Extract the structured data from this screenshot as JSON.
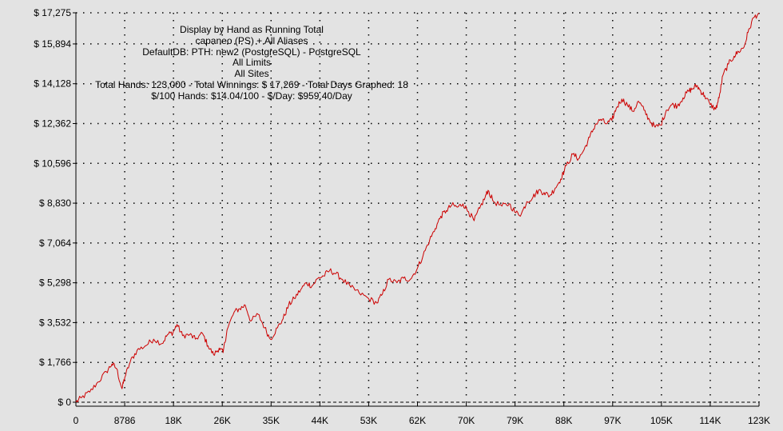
{
  "colors": {
    "background": "#e3e3e3",
    "line": "#cc0000",
    "grid": "#000000",
    "axis": "#000000"
  },
  "header": {
    "line1": "Display by Hand as Running Total",
    "line2": "capaneo (PS) + All Aliases",
    "line3": "DefaultDB: PTH: new2 (PostgreSQL) - PostgreSQL",
    "line4": "All Limits",
    "line5": "All Sites",
    "line6": "Total Hands: 123,000 - Total Winnings: $ 17,269 - Total Days Graphed: 18",
    "line7": "$/100 Hands: $14.04/100 - $/Day: $959.40/Day"
  },
  "chart_data": {
    "type": "line",
    "title": "",
    "xlabel": "",
    "ylabel": "",
    "grid": true,
    "xlim": [
      0,
      123000
    ],
    "ylim": [
      0,
      17275
    ],
    "y_tick_labels": [
      "$ 0",
      "$ 1,766",
      "$ 3,532",
      "$ 5,298",
      "$ 7,064",
      "$ 8,830",
      "$ 10,596",
      "$ 12,362",
      "$ 14,128",
      "$ 15,894",
      "$ 17,275"
    ],
    "y_tick_values": [
      0,
      1766,
      3532,
      5298,
      7064,
      8830,
      10596,
      12362,
      14128,
      15894,
      17275
    ],
    "x_tick_labels": [
      "0",
      "8786",
      "18K",
      "26K",
      "35K",
      "44K",
      "53K",
      "62K",
      "70K",
      "79K",
      "88K",
      "97K",
      "105K",
      "114K",
      "123K"
    ],
    "x_tick_values": [
      0,
      8786,
      17571,
      26357,
      35143,
      43929,
      52714,
      61500,
      70286,
      79071,
      87857,
      96643,
      105429,
      114214,
      123000
    ],
    "series": [
      {
        "values": [
          [
            0,
            0
          ],
          [
            1000,
            200
          ],
          [
            2500,
            450
          ],
          [
            4000,
            900
          ],
          [
            5500,
            1350
          ],
          [
            6500,
            1700
          ],
          [
            7300,
            1500
          ],
          [
            8300,
            600
          ],
          [
            8800,
            1100
          ],
          [
            9800,
            1800
          ],
          [
            11000,
            2300
          ],
          [
            12500,
            2500
          ],
          [
            14000,
            2800
          ],
          [
            15500,
            2600
          ],
          [
            16500,
            3000
          ],
          [
            17500,
            3100
          ],
          [
            18200,
            3450
          ],
          [
            19200,
            2950
          ],
          [
            20500,
            3000
          ],
          [
            21500,
            2800
          ],
          [
            22800,
            3050
          ],
          [
            23800,
            2500
          ],
          [
            24800,
            2100
          ],
          [
            25800,
            2400
          ],
          [
            26500,
            2200
          ],
          [
            27200,
            3200
          ],
          [
            28500,
            4000
          ],
          [
            29500,
            4150
          ],
          [
            30500,
            4300
          ],
          [
            31500,
            3600
          ],
          [
            32800,
            3900
          ],
          [
            34000,
            3300
          ],
          [
            35000,
            2800
          ],
          [
            36300,
            3300
          ],
          [
            37300,
            3700
          ],
          [
            38300,
            4300
          ],
          [
            39300,
            4600
          ],
          [
            40500,
            5000
          ],
          [
            41500,
            5300
          ],
          [
            42500,
            5150
          ],
          [
            43600,
            5500
          ],
          [
            44600,
            5600
          ],
          [
            45700,
            5850
          ],
          [
            46800,
            5700
          ],
          [
            48000,
            5450
          ],
          [
            49500,
            5100
          ],
          [
            51000,
            4850
          ],
          [
            52700,
            4600
          ],
          [
            54200,
            4400
          ],
          [
            55200,
            4800
          ],
          [
            56300,
            5450
          ],
          [
            57800,
            5300
          ],
          [
            59000,
            5500
          ],
          [
            60200,
            5450
          ],
          [
            61500,
            5950
          ],
          [
            62500,
            6500
          ],
          [
            63700,
            7200
          ],
          [
            64700,
            7700
          ],
          [
            65700,
            8250
          ],
          [
            66700,
            8500
          ],
          [
            67700,
            8750
          ],
          [
            68700,
            8650
          ],
          [
            69700,
            8800
          ],
          [
            70700,
            8450
          ],
          [
            71700,
            8050
          ],
          [
            72700,
            8600
          ],
          [
            73700,
            9100
          ],
          [
            74200,
            9400
          ],
          [
            75200,
            8900
          ],
          [
            76700,
            8700
          ],
          [
            78000,
            8800
          ],
          [
            79200,
            8400
          ],
          [
            80200,
            8350
          ],
          [
            81200,
            8900
          ],
          [
            82300,
            9100
          ],
          [
            83300,
            9400
          ],
          [
            84300,
            9300
          ],
          [
            85300,
            9150
          ],
          [
            86300,
            9500
          ],
          [
            87300,
            9900
          ],
          [
            88300,
            10500
          ],
          [
            89500,
            11000
          ],
          [
            90500,
            10800
          ],
          [
            91500,
            11200
          ],
          [
            92500,
            11750
          ],
          [
            93500,
            12300
          ],
          [
            94500,
            12550
          ],
          [
            95500,
            12350
          ],
          [
            96500,
            12500
          ],
          [
            97300,
            13050
          ],
          [
            98300,
            13450
          ],
          [
            99300,
            13200
          ],
          [
            100300,
            12900
          ],
          [
            101300,
            13350
          ],
          [
            102300,
            12950
          ],
          [
            103300,
            12500
          ],
          [
            104300,
            12200
          ],
          [
            105300,
            12300
          ],
          [
            106300,
            12950
          ],
          [
            107300,
            13200
          ],
          [
            108300,
            13150
          ],
          [
            109300,
            13500
          ],
          [
            110300,
            13800
          ],
          [
            111000,
            13900
          ],
          [
            111800,
            14050
          ],
          [
            112500,
            13800
          ],
          [
            113200,
            13600
          ],
          [
            114200,
            13200
          ],
          [
            115200,
            13000
          ],
          [
            115800,
            13500
          ],
          [
            116500,
            14500
          ],
          [
            117500,
            15000
          ],
          [
            118500,
            15350
          ],
          [
            119300,
            15550
          ],
          [
            120300,
            15750
          ],
          [
            121000,
            16400
          ],
          [
            122000,
            17050
          ],
          [
            123000,
            17269
          ]
        ]
      }
    ]
  }
}
